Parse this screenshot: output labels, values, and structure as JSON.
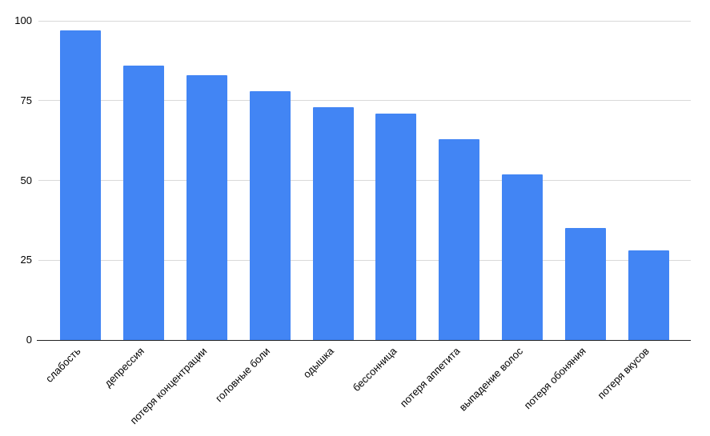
{
  "chart_data": {
    "type": "bar",
    "title": "",
    "xlabel": "",
    "ylabel": "",
    "categories": [
      "слабость",
      "депрессия",
      "потеря концентрации",
      "головные боли",
      "одышка",
      "бессонница",
      "потеря аппетита",
      "выпадение волос",
      "потеря обоняния",
      "потеря вкусов"
    ],
    "values": [
      97,
      86,
      83,
      78,
      73,
      71,
      63,
      52,
      35,
      28
    ],
    "ylim": [
      0,
      100
    ],
    "yticks": [
      0,
      25,
      50,
      75,
      100
    ],
    "grid": true,
    "legend": "none",
    "colors": {
      "bar": "#4285F4",
      "gridline": "#D9D9D9",
      "axis": "#212121",
      "label": "#000000",
      "background": "#FFFFFF"
    }
  }
}
